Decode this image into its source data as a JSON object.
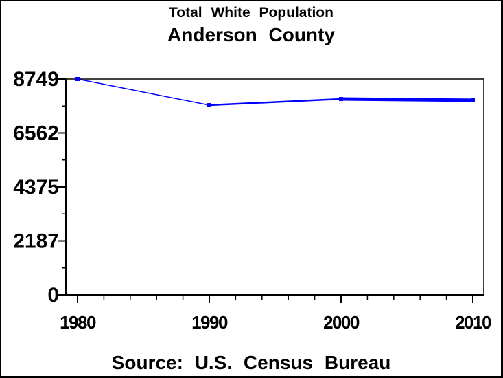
{
  "chart_data": {
    "type": "line",
    "title": "Total White Population",
    "subtitle": "Anderson County",
    "source": "Source: U.S. Census Bureau",
    "x": [
      1980,
      1990,
      2000,
      2010
    ],
    "xticks": [
      1980,
      1990,
      2000,
      2010
    ],
    "xtick_labels": [
      "1980",
      "1990",
      "2000",
      "2010"
    ],
    "x_minor_step": 2,
    "xlim": [
      1980,
      2010
    ],
    "series": [
      {
        "name": "Total White Population",
        "values": [
          8749,
          7690,
          7940,
          7890
        ]
      }
    ],
    "yticks": [
      0,
      2187,
      4375,
      6562,
      8749
    ],
    "ytick_labels": [
      "0",
      "2187",
      "4375",
      "6562",
      "8749"
    ],
    "ylim": [
      0,
      8749
    ],
    "y_minor": "midpoints",
    "xlabel": "",
    "ylabel": "",
    "grid": false,
    "frame": true,
    "legend": "none",
    "line_color": "#0000ff",
    "axis_color": "#000000",
    "background_color": "#ffffff",
    "marker": "square",
    "marker_size": 6,
    "segment_widths": [
      1.5,
      2.5,
      5
    ]
  }
}
